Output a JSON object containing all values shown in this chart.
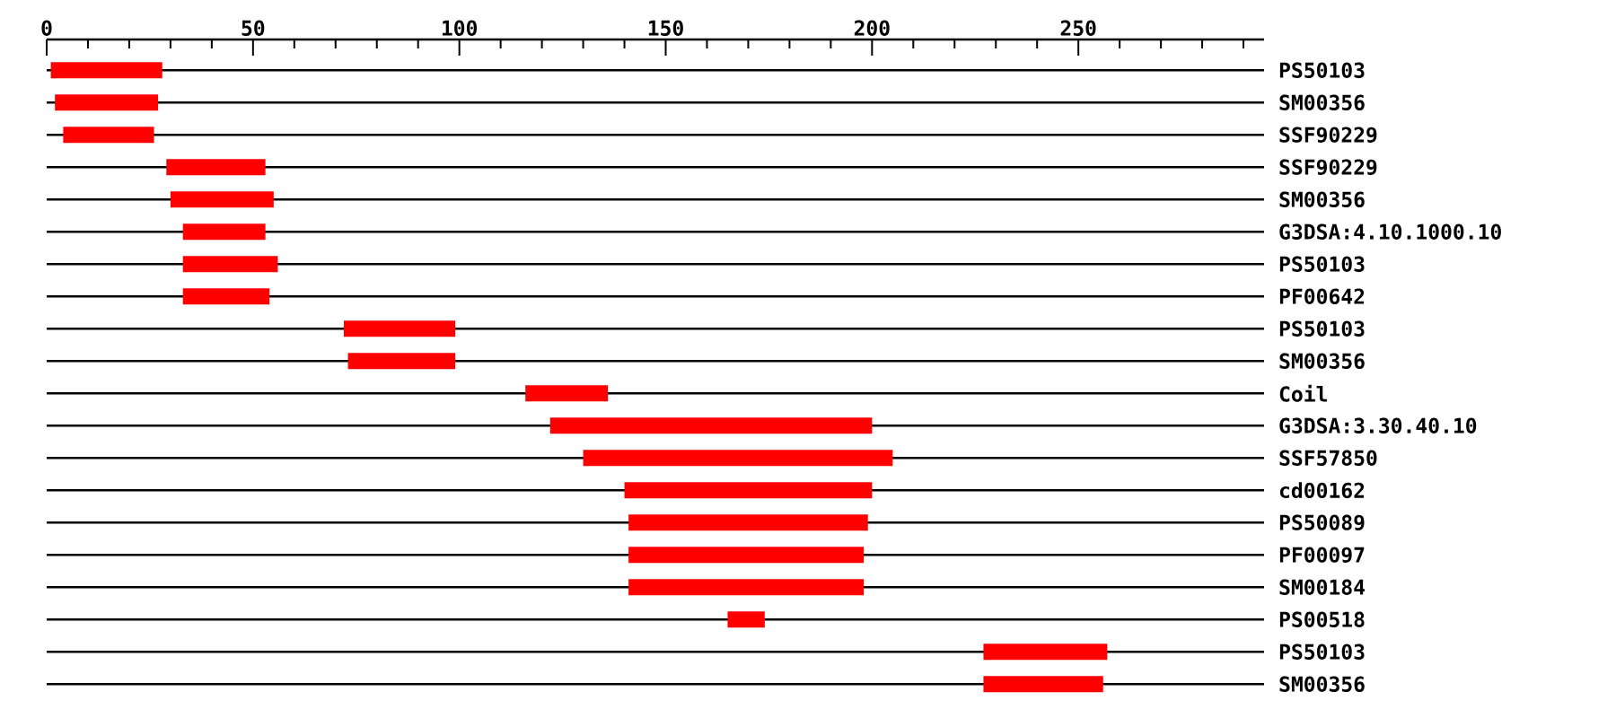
{
  "chart_data": {
    "type": "bar",
    "orientation": "horizontal",
    "color": "#ff0000",
    "grid": "y",
    "categories": [
      "PS50103",
      "SM00356",
      "SSF90229",
      "SSF90229",
      "SM00356",
      "G3DSA:4.10.1000.10",
      "PS50103",
      "PF00642",
      "PS50103",
      "SM00356",
      "Coil",
      "G3DSA:3.30.40.10",
      "SSF57850",
      "cd00162",
      "PS50089",
      "PF00097",
      "SM00184",
      "PS00518",
      "PS50103",
      "SM00356"
    ],
    "base": [
      1,
      2,
      4,
      29,
      30,
      33,
      33,
      33,
      72,
      73,
      116,
      122,
      130,
      140,
      141,
      141,
      141,
      165,
      227,
      227
    ],
    "values": [
      27,
      25,
      22,
      24,
      25,
      20,
      23,
      21,
      27,
      26,
      20,
      78,
      75,
      60,
      58,
      57,
      57,
      9,
      30,
      29
    ],
    "xlim": [
      0,
      295
    ],
    "xticks": [
      0,
      {
        "value": 10,
        "label": null
      },
      {
        "value": 20,
        "label": null
      },
      {
        "value": 30,
        "label": null
      },
      {
        "value": 40,
        "label": null
      },
      50,
      {
        "value": 60,
        "label": null
      },
      {
        "value": 70,
        "label": null
      },
      {
        "value": 80,
        "label": null
      },
      {
        "value": 90,
        "label": null
      },
      100,
      {
        "value": 110,
        "label": null
      },
      {
        "value": 120,
        "label": null
      },
      {
        "value": 130,
        "label": null
      },
      {
        "value": 140,
        "label": null
      },
      150,
      {
        "value": 160,
        "label": null
      },
      {
        "value": 170,
        "label": null
      },
      {
        "value": 180,
        "label": null
      },
      {
        "value": 190,
        "label": null
      },
      200,
      {
        "value": 210,
        "label": null
      },
      {
        "value": 220,
        "label": null
      },
      {
        "value": 230,
        "label": null
      },
      {
        "value": 240,
        "label": null
      },
      250,
      {
        "value": 260,
        "label": null
      },
      {
        "value": 270,
        "label": null
      },
      {
        "value": 280,
        "label": null
      },
      {
        "value": 290,
        "label": null
      }
    ]
  }
}
